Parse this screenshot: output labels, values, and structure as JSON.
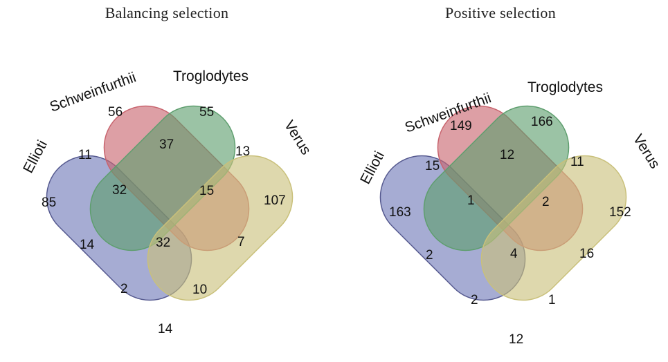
{
  "colors": {
    "ellioti": "#6f79b8",
    "schweinfurthii": "#c8646e",
    "troglodytes": "#5e9e6e",
    "verus": "#c9c07a",
    "outline": "#55598f"
  },
  "diagrams": [
    {
      "title": "Balancing selection",
      "sets": [
        "Ellioti",
        "Schweinfurthii",
        "Troglodytes",
        "Verus"
      ],
      "regions": [
        {
          "sets": "Ellioti",
          "value": "85"
        },
        {
          "sets": "Schweinfurthii",
          "value": "56"
        },
        {
          "sets": "Troglodytes",
          "value": "55"
        },
        {
          "sets": "Verus",
          "value": "107"
        },
        {
          "sets": "Ellioti+Schweinfurthii",
          "value": "11"
        },
        {
          "sets": "Schweinfurthii+Troglodytes",
          "value": "37"
        },
        {
          "sets": "Troglodytes+Verus",
          "value": "13"
        },
        {
          "sets": "Ellioti+Schweinfurthii+Troglodytes",
          "value": "32"
        },
        {
          "sets": "Schweinfurthii+Troglodytes+Verus",
          "value": "15"
        },
        {
          "sets": "Ellioti+Troglodytes",
          "value": "14"
        },
        {
          "sets": "Ellioti+Schweinfurthii+Troglodytes+Verus",
          "value": "32"
        },
        {
          "sets": "Schweinfurthii+Verus",
          "value": "7"
        },
        {
          "sets": "Ellioti+Troglodytes+Verus",
          "value": "2"
        },
        {
          "sets": "Ellioti+Schweinfurthii+Verus",
          "value": "10"
        },
        {
          "sets": "Ellioti+Verus",
          "value": "14"
        }
      ]
    },
    {
      "title": "Positive selection",
      "sets": [
        "Ellioti",
        "Schweinfurthii",
        "Troglodytes",
        "Verus"
      ],
      "regions": [
        {
          "sets": "Ellioti",
          "value": "163"
        },
        {
          "sets": "Schweinfurthii",
          "value": "149"
        },
        {
          "sets": "Troglodytes",
          "value": "166"
        },
        {
          "sets": "Verus",
          "value": "152"
        },
        {
          "sets": "Ellioti+Schweinfurthii",
          "value": "15"
        },
        {
          "sets": "Schweinfurthii+Troglodytes",
          "value": "12"
        },
        {
          "sets": "Troglodytes+Verus",
          "value": "11"
        },
        {
          "sets": "Ellioti+Schweinfurthii+Troglodytes",
          "value": "1"
        },
        {
          "sets": "Schweinfurthii+Troglodytes+Verus",
          "value": "2"
        },
        {
          "sets": "Ellioti+Troglodytes",
          "value": "2"
        },
        {
          "sets": "Ellioti+Schweinfurthii+Troglodytes+Verus",
          "value": "4"
        },
        {
          "sets": "Schweinfurthii+Verus",
          "value": "16"
        },
        {
          "sets": "Ellioti+Troglodytes+Verus",
          "value": "2"
        },
        {
          "sets": "Ellioti+Schweinfurthii+Verus",
          "value": "1"
        },
        {
          "sets": "Ellioti+Verus",
          "value": "12"
        }
      ]
    }
  ]
}
